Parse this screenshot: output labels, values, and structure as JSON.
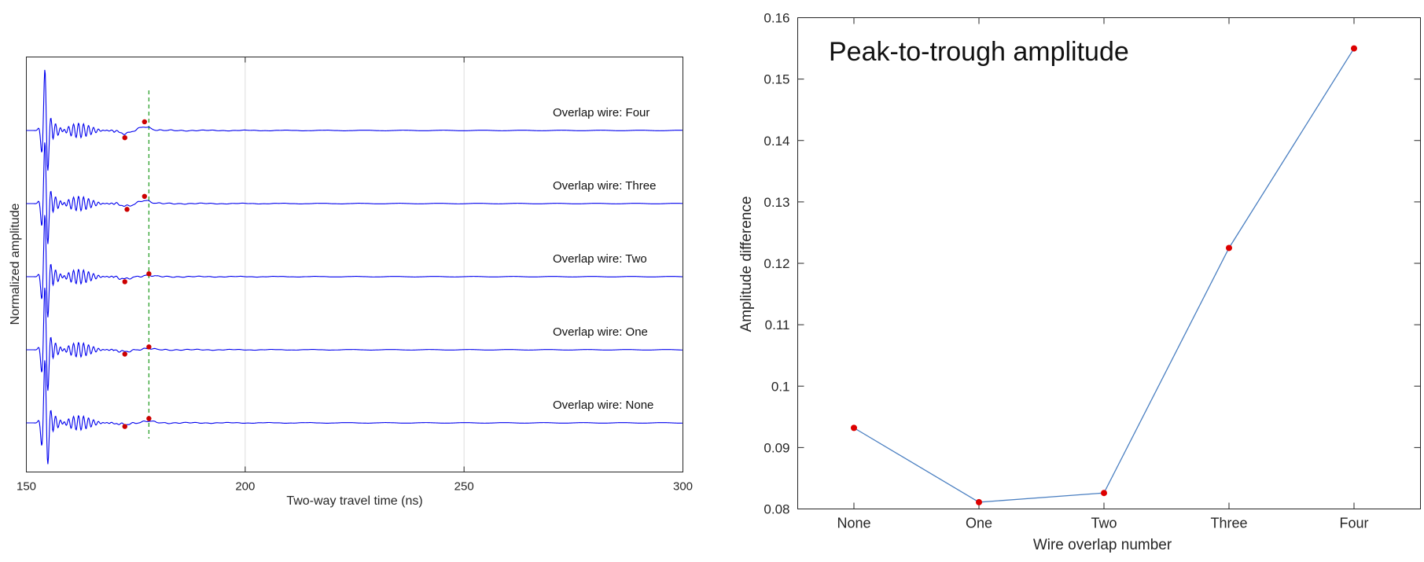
{
  "chart_data": [
    {
      "type": "line",
      "xlabel": "Two-way travel time (ns)",
      "ylabel": "Normalized amplitude",
      "xlim": [
        150,
        300
      ],
      "x_ticks": [
        150,
        200,
        250,
        300
      ],
      "x_tick_labels": [
        "150",
        "200",
        "250",
        "300"
      ],
      "grid": "vertical lines at 200 and 250",
      "reference_line": {
        "x": 178,
        "color": "#2ca02c",
        "style": "dashed"
      },
      "line_color": "#0000ee",
      "marker_color": "#cc0000",
      "traces": [
        {
          "label": "Overlap wire: Four",
          "trough_x": 172.5,
          "trough_y": -0.1,
          "peak_x": 177.0,
          "peak_y": 0.12
        },
        {
          "label": "Overlap wire: Three",
          "trough_x": 173.0,
          "trough_y": -0.08,
          "peak_x": 177.0,
          "peak_y": 0.1
        },
        {
          "label": "Overlap wire: Two",
          "trough_x": 172.5,
          "trough_y": -0.07,
          "peak_x": 178.0,
          "peak_y": 0.04
        },
        {
          "label": "Overlap wire: One",
          "trough_x": 172.5,
          "trough_y": -0.06,
          "peak_x": 178.0,
          "peak_y": 0.04
        },
        {
          "label": "Overlap wire: None",
          "trough_x": 172.5,
          "trough_y": -0.05,
          "peak_x": 178.0,
          "peak_y": 0.06
        }
      ]
    },
    {
      "type": "line",
      "title": "Peak-to-trough amplitude",
      "xlabel": "Wire overlap number",
      "ylabel": "Amplitude difference",
      "categories": [
        "None",
        "One",
        "Two",
        "Three",
        "Four"
      ],
      "values": [
        0.0932,
        0.0811,
        0.0826,
        0.1225,
        0.155
      ],
      "ylim": [
        0.08,
        0.16
      ],
      "y_ticks": [
        0.08,
        0.09,
        0.1,
        0.11,
        0.12,
        0.13,
        0.14,
        0.15,
        0.16
      ],
      "y_tick_labels": [
        "0.08",
        "0.09",
        "0.1",
        "0.11",
        "0.12",
        "0.13",
        "0.14",
        "0.15",
        "0.16"
      ],
      "line_color": "#4a7fc1",
      "marker_color": "#dd0000",
      "grid": false
    }
  ]
}
